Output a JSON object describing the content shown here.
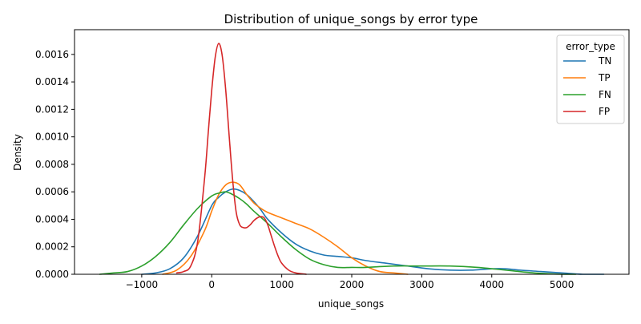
{
  "chart_data": {
    "type": "line",
    "title": "Distribution of unique_songs by error type",
    "xlabel": "unique_songs",
    "ylabel": "Density",
    "xlim": [
      -1960,
      5960
    ],
    "ylim": [
      0,
      0.00178
    ],
    "xticks": [
      -1000,
      0,
      1000,
      2000,
      3000,
      4000,
      5000
    ],
    "xtick_labels": [
      "−1000",
      "0",
      "1000",
      "2000",
      "3000",
      "4000",
      "5000"
    ],
    "yticks": [
      0,
      0.0002,
      0.0004,
      0.0006,
      0.0008,
      0.001,
      0.0012,
      0.0014,
      0.0016
    ],
    "ytick_labels": [
      "0.0000",
      "0.0002",
      "0.0004",
      "0.0006",
      "0.0008",
      "0.0010",
      "0.0012",
      "0.0014",
      "0.0016"
    ],
    "grid": false,
    "legend": {
      "title": "error_type",
      "placement": "top-right"
    },
    "series": [
      {
        "name": "TN",
        "color": "#1f77b4",
        "x": [
          -1000,
          -800,
          -600,
          -400,
          -200,
          0,
          100,
          200,
          300,
          400,
          500,
          600,
          700,
          800,
          1000,
          1200,
          1400,
          1600,
          1800,
          2000,
          2200,
          2500,
          2800,
          3100,
          3400,
          3700,
          4000,
          4200,
          4400,
          4700,
          5000,
          5300,
          5600
        ],
        "y": [
          0.0,
          1e-05,
          4e-05,
          0.00012,
          0.00028,
          0.0005,
          0.00056,
          0.0006,
          0.00062,
          0.00061,
          0.00058,
          0.00053,
          0.00047,
          0.0004,
          0.0003,
          0.00022,
          0.00017,
          0.00014,
          0.00013,
          0.00012,
          0.0001,
          8e-05,
          6e-05,
          4e-05,
          3e-05,
          3e-05,
          4e-05,
          4e-05,
          3e-05,
          2e-05,
          1e-05,
          0.0,
          0.0
        ]
      },
      {
        "name": "TP",
        "color": "#ff7f0e",
        "x": [
          -700,
          -500,
          -300,
          -100,
          0,
          100,
          200,
          300,
          400,
          500,
          600,
          700,
          800,
          1000,
          1200,
          1400,
          1600,
          1800,
          2000,
          2200,
          2400,
          2600,
          2800
        ],
        "y": [
          0.0,
          3e-05,
          0.00013,
          0.00032,
          0.00046,
          0.00058,
          0.00065,
          0.00067,
          0.00065,
          0.00058,
          0.00052,
          0.00048,
          0.00045,
          0.00041,
          0.00037,
          0.00033,
          0.00027,
          0.0002,
          0.00012,
          6e-05,
          2e-05,
          1e-05,
          0.0
        ]
      },
      {
        "name": "FN",
        "color": "#2ca02c",
        "x": [
          -1600,
          -1400,
          -1200,
          -1000,
          -800,
          -600,
          -400,
          -200,
          0,
          100,
          200,
          300,
          400,
          500,
          600,
          800,
          1000,
          1200,
          1400,
          1600,
          1800,
          2000,
          2200,
          2600,
          3000,
          3400,
          3800,
          4200,
          4600,
          5000,
          5200
        ],
        "y": [
          0.0,
          1e-05,
          2e-05,
          6e-05,
          0.00013,
          0.00023,
          0.00036,
          0.00048,
          0.00057,
          0.00059,
          0.0006,
          0.00058,
          0.00055,
          0.00051,
          0.00046,
          0.00037,
          0.00027,
          0.00018,
          0.00011,
          7e-05,
          5e-05,
          5e-05,
          5e-05,
          6e-05,
          6e-05,
          6e-05,
          5e-05,
          3e-05,
          1e-05,
          0.0,
          0.0
        ]
      },
      {
        "name": "FP",
        "color": "#d62728",
        "x": [
          -500,
          -400,
          -300,
          -200,
          -100,
          -50,
          0,
          50,
          100,
          150,
          200,
          250,
          300,
          350,
          400,
          450,
          500,
          550,
          600,
          650,
          700,
          750,
          800,
          850,
          900,
          950,
          1000,
          1100,
          1200,
          1350
        ],
        "y": [
          1e-05,
          2e-05,
          6e-05,
          0.00024,
          0.00071,
          0.00103,
          0.00134,
          0.00158,
          0.00168,
          0.00159,
          0.00134,
          0.001,
          0.00068,
          0.00045,
          0.00036,
          0.00034,
          0.00034,
          0.00036,
          0.00039,
          0.00041,
          0.00042,
          0.00041,
          0.00036,
          0.00028,
          0.0002,
          0.00013,
          8e-05,
          3e-05,
          1e-05,
          0.0
        ]
      }
    ]
  }
}
